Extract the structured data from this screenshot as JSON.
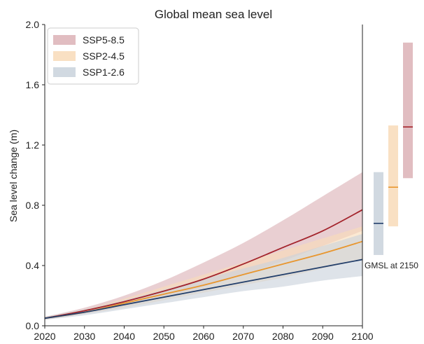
{
  "chart_data": {
    "type": "area",
    "title": "Global mean sea level",
    "xlabel": "",
    "ylabel": "Sea level change (m)",
    "xlim": [
      2020,
      2100
    ],
    "ylim": [
      0.0,
      2.0
    ],
    "xticks": [
      2020,
      2030,
      2040,
      2050,
      2060,
      2070,
      2080,
      2090,
      2100
    ],
    "yticks": [
      "0.0",
      "0.4",
      "0.8",
      "1.2",
      "1.6",
      "2.0"
    ],
    "legend_position": "top-left",
    "x": [
      2020,
      2030,
      2040,
      2050,
      2060,
      2070,
      2080,
      2090,
      2100
    ],
    "series": [
      {
        "name": "SSP5-8.5",
        "fill_color": "#dcb1b6",
        "line_color": "#a3232b",
        "median": [
          0.05,
          0.1,
          0.16,
          0.23,
          0.31,
          0.41,
          0.52,
          0.63,
          0.77
        ],
        "lower": [
          0.04,
          0.08,
          0.13,
          0.19,
          0.26,
          0.34,
          0.43,
          0.53,
          0.63
        ],
        "upper": [
          0.06,
          0.12,
          0.2,
          0.3,
          0.42,
          0.55,
          0.7,
          0.86,
          1.02
        ]
      },
      {
        "name": "SSP2-4.5",
        "fill_color": "#f8dbb8",
        "line_color": "#e8962e",
        "median": [
          0.05,
          0.09,
          0.15,
          0.21,
          0.27,
          0.34,
          0.41,
          0.48,
          0.56
        ],
        "lower": [
          0.04,
          0.08,
          0.12,
          0.17,
          0.22,
          0.27,
          0.32,
          0.38,
          0.44
        ],
        "upper": [
          0.06,
          0.11,
          0.18,
          0.26,
          0.34,
          0.42,
          0.5,
          0.58,
          0.66
        ]
      },
      {
        "name": "SSP1-2.6",
        "fill_color": "#c9d2dc",
        "line_color": "#233f6b",
        "median": [
          0.05,
          0.09,
          0.14,
          0.19,
          0.24,
          0.29,
          0.34,
          0.39,
          0.44
        ],
        "lower": [
          0.04,
          0.07,
          0.11,
          0.15,
          0.19,
          0.23,
          0.26,
          0.3,
          0.33
        ],
        "upper": [
          0.06,
          0.11,
          0.17,
          0.24,
          0.31,
          0.38,
          0.45,
          0.53,
          0.61
        ]
      }
    ],
    "side_panel": {
      "label": "GMSL at 2150",
      "bars": [
        {
          "name": "SSP1-2.6",
          "low": 0.47,
          "high": 1.02,
          "median": 0.68
        },
        {
          "name": "SSP2-4.5",
          "low": 0.66,
          "high": 1.33,
          "median": 0.92
        },
        {
          "name": "SSP5-8.5",
          "low": 0.98,
          "high": 1.88,
          "median": 1.32
        }
      ]
    }
  }
}
